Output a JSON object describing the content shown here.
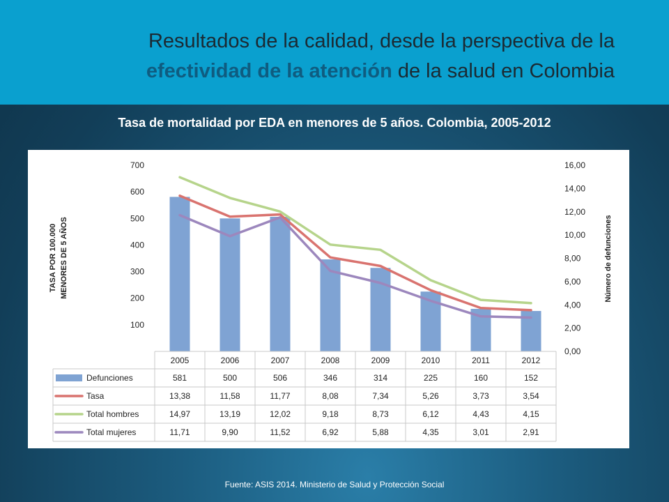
{
  "header": {
    "title_part1": "Resultados de la calidad, desde la perspectiva de la",
    "title_highlight": "efectividad de la atención",
    "title_part2": " de la salud en Colombia"
  },
  "subtitle": "Tasa de mortalidad por EDA en menores de 5 años. Colombia, 2005-2012",
  "source": "Fuente: ASIS 2014. Ministerio de Salud y Protección Social",
  "chart_data": {
    "type": "bar",
    "categories": [
      "2005",
      "2006",
      "2007",
      "2008",
      "2009",
      "2010",
      "2011",
      "2012"
    ],
    "left_axis": {
      "label_line1": "TASA POR 100.000",
      "label_line2": "MENORES DE 5 AÑOS",
      "ylim": [
        0,
        700
      ],
      "ticks": [
        "100",
        "200",
        "300",
        "400",
        "500",
        "600",
        "700"
      ]
    },
    "right_axis": {
      "label": "Número de defunciones",
      "ylim": [
        0,
        16
      ],
      "ticks": [
        "0,00",
        "2,00",
        "4,00",
        "6,00",
        "8,00",
        "10,00",
        "12,00",
        "14,00",
        "16,00"
      ]
    },
    "series": [
      {
        "name": "Defunciones",
        "type": "bar",
        "axis": "left",
        "color": "#7fa3d3",
        "values": [
          581,
          500,
          506,
          346,
          314,
          225,
          160,
          152
        ],
        "labels": [
          "581",
          "500",
          "506",
          "346",
          "314",
          "225",
          "160",
          "152"
        ]
      },
      {
        "name": "Tasa",
        "type": "line",
        "axis": "right",
        "color": "#d9736f",
        "values": [
          13.38,
          11.58,
          11.77,
          8.08,
          7.34,
          5.26,
          3.73,
          3.54
        ],
        "labels": [
          "13,38",
          "11,58",
          "11,77",
          "8,08",
          "7,34",
          "5,26",
          "3,73",
          "3,54"
        ]
      },
      {
        "name": "Total hombres",
        "type": "line",
        "axis": "right",
        "color": "#b6d48b",
        "values": [
          14.97,
          13.19,
          12.02,
          9.18,
          8.73,
          6.12,
          4.43,
          4.15
        ],
        "labels": [
          "14,97",
          "13,19",
          "12,02",
          "9,18",
          "8,73",
          "6,12",
          "4,43",
          "4,15"
        ]
      },
      {
        "name": "Total mujeres",
        "type": "line",
        "axis": "right",
        "color": "#9c87bd",
        "values": [
          11.71,
          9.9,
          11.52,
          6.92,
          5.88,
          4.35,
          3.01,
          2.91
        ],
        "labels": [
          "11,71",
          "9,90",
          "11,52",
          "6,92",
          "5,88",
          "4,35",
          "3,01",
          "2,91"
        ]
      }
    ],
    "legend": "data-table"
  }
}
